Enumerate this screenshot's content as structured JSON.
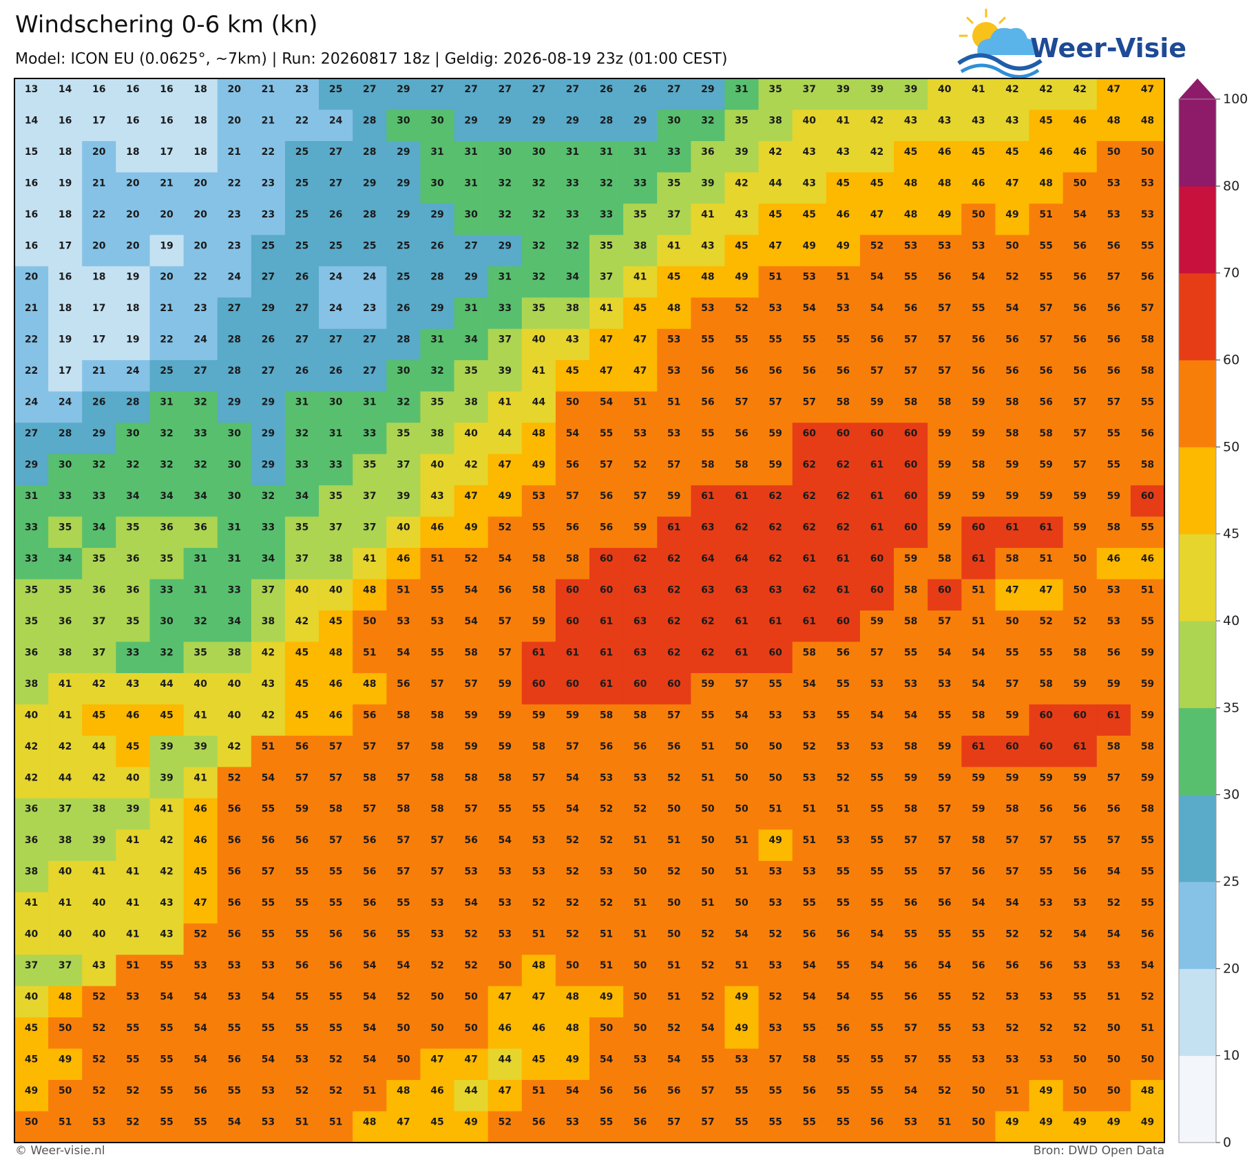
{
  "header": {
    "title": "Windschering 0-6 km (kn)",
    "subtitle": "Model: ICON EU (0.0625°, ~7km)  |  Run: 20260817 18z  |  Geldig: 2026-08-19 23z (01:00 CEST)",
    "logo": "Weer-Visie"
  },
  "footer": {
    "left": "© Weer-visie.nl",
    "right": "Bron: DWD Open Data"
  },
  "colorbar": {
    "levels": [
      0,
      10,
      20,
      25,
      30,
      35,
      40,
      45,
      50,
      60,
      70,
      80,
      100
    ],
    "colors": [
      "#f3f7fb",
      "#c4e1f2",
      "#86c2e6",
      "#5aaac9",
      "#58bf6e",
      "#add552",
      "#e6d52d",
      "#fdb800",
      "#f87e0a",
      "#e63d17",
      "#c9113d",
      "#8d1b69"
    ]
  },
  "grid": [
    [
      13,
      14,
      16,
      16,
      16,
      18,
      20,
      21,
      23,
      25,
      27,
      29,
      27,
      27,
      27,
      27,
      27,
      26,
      26,
      27,
      29,
      31,
      35,
      37,
      39,
      39,
      39,
      40,
      41,
      42,
      42,
      42,
      47,
      47
    ],
    [
      14,
      16,
      17,
      16,
      16,
      18,
      20,
      21,
      22,
      24,
      28,
      30,
      30,
      29,
      29,
      29,
      29,
      28,
      29,
      30,
      32,
      35,
      38,
      40,
      41,
      42,
      43,
      43,
      43,
      43,
      45,
      46,
      48,
      48
    ],
    [
      15,
      18,
      20,
      18,
      17,
      18,
      21,
      22,
      25,
      27,
      28,
      29,
      31,
      31,
      30,
      30,
      31,
      31,
      31,
      33,
      36,
      39,
      42,
      43,
      43,
      42,
      45,
      46,
      45,
      45,
      46,
      46,
      50,
      50
    ],
    [
      16,
      19,
      21,
      20,
      21,
      20,
      22,
      23,
      25,
      27,
      29,
      29,
      30,
      31,
      32,
      32,
      33,
      32,
      33,
      35,
      39,
      42,
      44,
      43,
      45,
      45,
      48,
      48,
      46,
      47,
      48,
      50,
      53,
      53
    ],
    [
      16,
      18,
      22,
      20,
      20,
      20,
      23,
      23,
      25,
      26,
      28,
      29,
      29,
      30,
      32,
      32,
      33,
      33,
      35,
      37,
      41,
      43,
      45,
      45,
      46,
      47,
      48,
      49,
      50,
      49,
      51,
      54,
      53,
      53
    ],
    [
      16,
      17,
      20,
      20,
      19,
      20,
      23,
      25,
      25,
      25,
      25,
      25,
      26,
      27,
      29,
      32,
      32,
      35,
      38,
      41,
      43,
      45,
      47,
      49,
      49,
      52,
      53,
      53,
      53,
      50,
      55,
      56,
      56,
      55
    ],
    [
      20,
      16,
      18,
      19,
      20,
      22,
      24,
      27,
      26,
      24,
      24,
      25,
      28,
      29,
      31,
      32,
      34,
      37,
      41,
      45,
      48,
      49,
      51,
      53,
      51,
      54,
      55,
      56,
      54,
      52,
      55,
      56,
      57,
      56
    ],
    [
      21,
      18,
      17,
      18,
      21,
      23,
      27,
      29,
      27,
      24,
      23,
      26,
      29,
      31,
      33,
      35,
      38,
      41,
      45,
      48,
      53,
      52,
      53,
      54,
      53,
      54,
      56,
      57,
      55,
      54,
      57,
      56,
      56,
      57
    ],
    [
      22,
      19,
      17,
      19,
      22,
      24,
      28,
      26,
      27,
      27,
      27,
      28,
      31,
      34,
      37,
      40,
      43,
      47,
      47,
      53,
      55,
      55,
      55,
      55,
      55,
      56,
      57,
      57,
      56,
      56,
      57,
      56,
      56,
      58
    ],
    [
      22,
      17,
      21,
      24,
      25,
      27,
      28,
      27,
      26,
      26,
      27,
      30,
      32,
      35,
      39,
      41,
      45,
      47,
      47,
      53,
      56,
      56,
      56,
      56,
      56,
      57,
      57,
      57,
      56,
      56,
      56,
      56,
      56,
      58
    ],
    [
      24,
      24,
      26,
      28,
      31,
      32,
      29,
      29,
      31,
      30,
      31,
      32,
      35,
      38,
      41,
      44,
      50,
      54,
      51,
      51,
      56,
      57,
      57,
      57,
      58,
      59,
      58,
      58,
      59,
      58,
      56,
      57,
      57,
      55
    ],
    [
      27,
      28,
      29,
      30,
      32,
      33,
      30,
      29,
      32,
      31,
      33,
      35,
      38,
      40,
      44,
      48,
      54,
      55,
      53,
      53,
      55,
      56,
      59,
      60,
      60,
      60,
      60,
      59,
      59,
      58,
      58,
      57,
      55,
      56
    ],
    [
      29,
      30,
      32,
      32,
      32,
      32,
      30,
      29,
      33,
      33,
      35,
      37,
      40,
      42,
      47,
      49,
      56,
      57,
      52,
      57,
      58,
      58,
      59,
      62,
      62,
      61,
      60,
      59,
      58,
      59,
      59,
      57,
      55,
      58
    ],
    [
      31,
      33,
      33,
      34,
      34,
      34,
      30,
      32,
      34,
      35,
      37,
      39,
      43,
      47,
      49,
      53,
      57,
      56,
      57,
      59,
      61,
      61,
      62,
      62,
      62,
      61,
      60,
      59,
      59,
      59,
      59,
      59,
      59,
      60
    ],
    [
      33,
      35,
      34,
      35,
      36,
      36,
      31,
      33,
      35,
      37,
      37,
      40,
      46,
      49,
      52,
      55,
      56,
      56,
      59,
      61,
      63,
      62,
      62,
      62,
      62,
      61,
      60,
      59,
      60,
      61,
      61,
      59,
      58,
      55
    ],
    [
      33,
      34,
      35,
      36,
      35,
      31,
      31,
      34,
      37,
      38,
      41,
      46,
      51,
      52,
      54,
      58,
      58,
      60,
      62,
      62,
      64,
      64,
      62,
      61,
      61,
      60,
      59,
      58,
      61,
      58,
      51,
      50,
      46,
      46
    ],
    [
      35,
      35,
      36,
      36,
      33,
      31,
      33,
      37,
      40,
      40,
      48,
      51,
      55,
      54,
      56,
      58,
      60,
      60,
      63,
      62,
      63,
      63,
      63,
      62,
      61,
      60,
      58,
      60,
      51,
      47,
      47,
      50,
      53,
      51
    ],
    [
      35,
      36,
      37,
      35,
      30,
      32,
      34,
      38,
      42,
      45,
      50,
      53,
      53,
      54,
      57,
      59,
      60,
      61,
      63,
      62,
      62,
      61,
      61,
      61,
      60,
      59,
      58,
      57,
      51,
      50,
      52,
      52,
      53,
      55
    ],
    [
      36,
      38,
      37,
      33,
      32,
      35,
      38,
      42,
      45,
      48,
      51,
      54,
      55,
      58,
      57,
      61,
      61,
      61,
      63,
      62,
      62,
      61,
      60,
      58,
      56,
      57,
      55,
      54,
      54,
      55,
      55,
      58,
      56,
      59
    ],
    [
      38,
      41,
      42,
      43,
      44,
      40,
      40,
      43,
      45,
      46,
      48,
      56,
      57,
      57,
      59,
      60,
      60,
      61,
      60,
      60,
      59,
      57,
      55,
      54,
      55,
      53,
      53,
      53,
      54,
      57,
      58,
      59,
      59,
      59
    ],
    [
      40,
      41,
      45,
      46,
      45,
      41,
      40,
      42,
      45,
      46,
      56,
      58,
      58,
      59,
      59,
      59,
      59,
      58,
      58,
      57,
      55,
      54,
      53,
      53,
      55,
      54,
      54,
      55,
      58,
      59,
      60,
      60,
      61,
      59
    ],
    [
      42,
      42,
      44,
      45,
      39,
      39,
      42,
      51,
      56,
      57,
      57,
      57,
      58,
      59,
      59,
      58,
      57,
      56,
      56,
      56,
      51,
      50,
      50,
      52,
      53,
      53,
      58,
      59,
      61,
      60,
      60,
      61,
      58,
      58
    ],
    [
      42,
      44,
      42,
      40,
      39,
      41,
      52,
      54,
      57,
      57,
      58,
      57,
      58,
      58,
      58,
      57,
      54,
      53,
      53,
      52,
      51,
      50,
      50,
      53,
      52,
      55,
      59,
      59,
      59,
      59,
      59,
      59,
      57,
      59
    ],
    [
      36,
      37,
      38,
      39,
      41,
      46,
      56,
      55,
      59,
      58,
      57,
      58,
      58,
      57,
      55,
      55,
      54,
      52,
      52,
      50,
      50,
      50,
      51,
      51,
      51,
      55,
      58,
      57,
      59,
      58,
      56,
      56,
      56,
      58
    ],
    [
      36,
      38,
      39,
      41,
      42,
      46,
      56,
      56,
      56,
      57,
      56,
      57,
      57,
      56,
      54,
      53,
      52,
      52,
      51,
      51,
      50,
      51,
      49,
      51,
      53,
      55,
      57,
      57,
      58,
      57,
      57,
      55,
      57,
      55
    ],
    [
      38,
      40,
      41,
      41,
      42,
      45,
      56,
      57,
      55,
      55,
      56,
      57,
      57,
      53,
      53,
      53,
      52,
      53,
      50,
      52,
      50,
      51,
      53,
      53,
      55,
      55,
      55,
      57,
      56,
      57,
      55,
      56,
      54,
      55
    ],
    [
      41,
      41,
      40,
      41,
      43,
      47,
      56,
      55,
      55,
      55,
      56,
      55,
      53,
      54,
      53,
      52,
      52,
      52,
      51,
      50,
      51,
      50,
      53,
      55,
      55,
      55,
      56,
      56,
      54,
      54,
      53,
      53,
      52,
      55
    ],
    [
      40,
      40,
      40,
      41,
      43,
      52,
      56,
      55,
      55,
      56,
      56,
      55,
      53,
      52,
      53,
      51,
      52,
      51,
      51,
      50,
      52,
      54,
      52,
      56,
      56,
      54,
      55,
      55,
      55,
      52,
      52,
      54,
      54,
      56
    ],
    [
      37,
      37,
      43,
      51,
      55,
      53,
      53,
      53,
      56,
      56,
      54,
      54,
      52,
      52,
      50,
      48,
      50,
      51,
      50,
      51,
      52,
      51,
      53,
      54,
      55,
      54,
      56,
      54,
      56,
      56,
      56,
      53,
      53,
      54
    ],
    [
      40,
      48,
      52,
      53,
      54,
      54,
      53,
      54,
      55,
      55,
      54,
      52,
      50,
      50,
      47,
      47,
      48,
      49,
      50,
      51,
      52,
      49,
      52,
      54,
      54,
      55,
      56,
      55,
      52,
      53,
      53,
      55,
      51,
      52
    ],
    [
      45,
      50,
      52,
      55,
      55,
      54,
      55,
      55,
      55,
      55,
      54,
      50,
      50,
      50,
      46,
      46,
      48,
      50,
      50,
      52,
      54,
      49,
      53,
      55,
      56,
      55,
      57,
      55,
      53,
      52,
      52,
      52,
      50,
      51
    ],
    [
      45,
      49,
      52,
      55,
      55,
      54,
      56,
      54,
      53,
      52,
      54,
      50,
      47,
      47,
      44,
      45,
      49,
      54,
      53,
      54,
      55,
      53,
      57,
      58,
      55,
      55,
      57,
      55,
      53,
      53,
      53,
      50,
      50,
      50
    ],
    [
      49,
      50,
      52,
      52,
      55,
      56,
      55,
      53,
      52,
      52,
      51,
      48,
      46,
      44,
      47,
      51,
      54,
      56,
      56,
      56,
      57,
      55,
      55,
      56,
      55,
      55,
      54,
      52,
      50,
      51,
      49,
      50,
      50,
      48
    ],
    [
      50,
      51,
      53,
      52,
      55,
      55,
      54,
      53,
      51,
      51,
      48,
      47,
      45,
      49,
      52,
      56,
      53,
      55,
      56,
      57,
      57,
      55,
      55,
      55,
      55,
      56,
      53,
      51,
      50,
      49,
      49,
      49,
      49,
      49
    ]
  ]
}
